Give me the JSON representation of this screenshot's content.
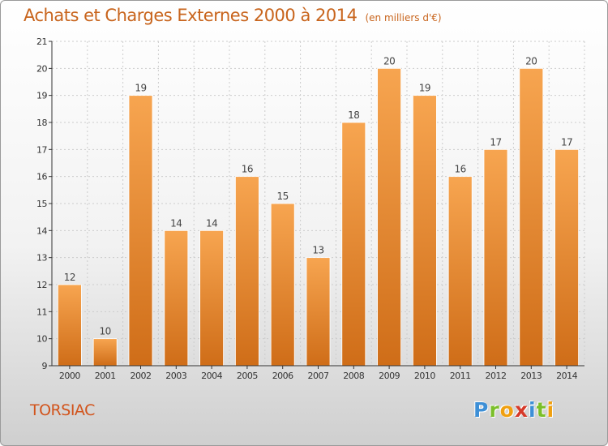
{
  "header": {
    "title": "Achats et Charges Externes 2000 à 2014",
    "subtitle": "(en milliers d'€)"
  },
  "footer": {
    "town": "TORSIAC",
    "logo_text": "Proxiti",
    "logo_letters": [
      {
        "char": "P",
        "color": "#3d8fd6"
      },
      {
        "char": "r",
        "color": "#7bbf2a"
      },
      {
        "char": "o",
        "color": "#f0a010"
      },
      {
        "char": "x",
        "color": "#d63a2a"
      },
      {
        "char": "i",
        "color": "#3d8fd6"
      },
      {
        "char": "t",
        "color": "#7bbf2a"
      },
      {
        "char": "i",
        "color": "#f0a010"
      }
    ]
  },
  "colors": {
    "title": "#c8641c",
    "bar_top": "#f7a550",
    "bar_bottom": "#cf6d18",
    "axis": "#333333",
    "grid": "#cccccc"
  },
  "chart_data": {
    "type": "bar",
    "categories": [
      "2000",
      "2001",
      "2002",
      "2003",
      "2004",
      "2005",
      "2006",
      "2007",
      "2008",
      "2009",
      "2010",
      "2011",
      "2012",
      "2013",
      "2014"
    ],
    "values": [
      12,
      10,
      19,
      14,
      14,
      16,
      15,
      13,
      18,
      20,
      19,
      16,
      17,
      20,
      17
    ],
    "ylim": [
      9,
      21
    ],
    "yticks": [
      9,
      10,
      11,
      12,
      13,
      14,
      15,
      16,
      17,
      18,
      19,
      20,
      21
    ],
    "grid": true,
    "data_labels": true
  }
}
